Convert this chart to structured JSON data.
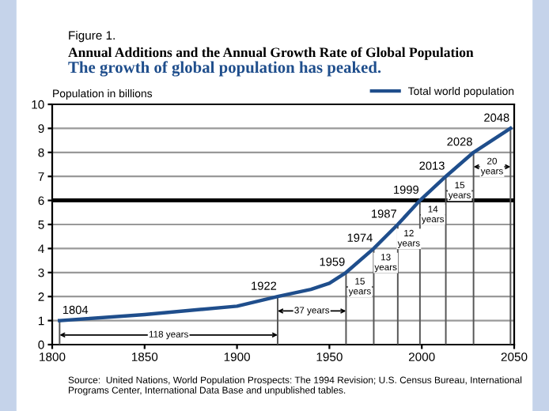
{
  "chart_data": {
    "type": "line",
    "title": "Annual Additions and the Annual Growth Rate of Global Population",
    "subtitle": "The growth of global population has peaked.",
    "ylabel": "Population in billions",
    "series": [
      {
        "name": "Total world population",
        "color": "#1f4e8c",
        "x": [
          1804,
          1850,
          1900,
          1922,
          1940,
          1950,
          1959,
          1974,
          1987,
          1999,
          2013,
          2028,
          2048
        ],
        "values": [
          1,
          1.25,
          1.6,
          2,
          2.3,
          2.55,
          3,
          4,
          5,
          6,
          7,
          8,
          9
        ]
      }
    ],
    "xlim": [
      1800,
      2050
    ],
    "xticks": [
      1800,
      1850,
      1900,
      1950,
      2000,
      2050
    ],
    "ylim": [
      0,
      10
    ],
    "yticks": [
      0,
      1,
      2,
      3,
      4,
      5,
      6,
      7,
      8,
      9,
      10
    ],
    "grid": "y",
    "legend": "top right",
    "marker": "none",
    "line_style": "solid",
    "ref_lines": [
      {
        "axis": "y",
        "value": 6,
        "color": "#000000"
      }
    ],
    "annotations": [
      "Figure 1.",
      {
        "text": "1804",
        "x": 1804,
        "y": 1
      },
      {
        "text": "1922",
        "x": 1922,
        "y": 2
      },
      {
        "text": "1959",
        "x": 1959,
        "y": 3
      },
      {
        "text": "1974",
        "x": 1974,
        "y": 4
      },
      {
        "text": "1987",
        "x": 1987,
        "y": 5
      },
      {
        "text": "1999",
        "x": 1999,
        "y": 6
      },
      {
        "text": "2013",
        "x": 2013,
        "y": 7
      },
      {
        "text": "2028",
        "x": 2028,
        "y": 8
      },
      {
        "text": "2048",
        "x": 2048,
        "y": 9
      },
      "118 years",
      "37 years",
      "15\nyears",
      "13\nyears",
      "12\nyears",
      "14\nyears",
      "15\nyears",
      "20\nyears",
      "Source:  United Nations, World Population Prospects: The 1994 Revision; U.S. Census Bureau, International Programs Center, International Data Base and unpublished tables."
    ]
  }
}
